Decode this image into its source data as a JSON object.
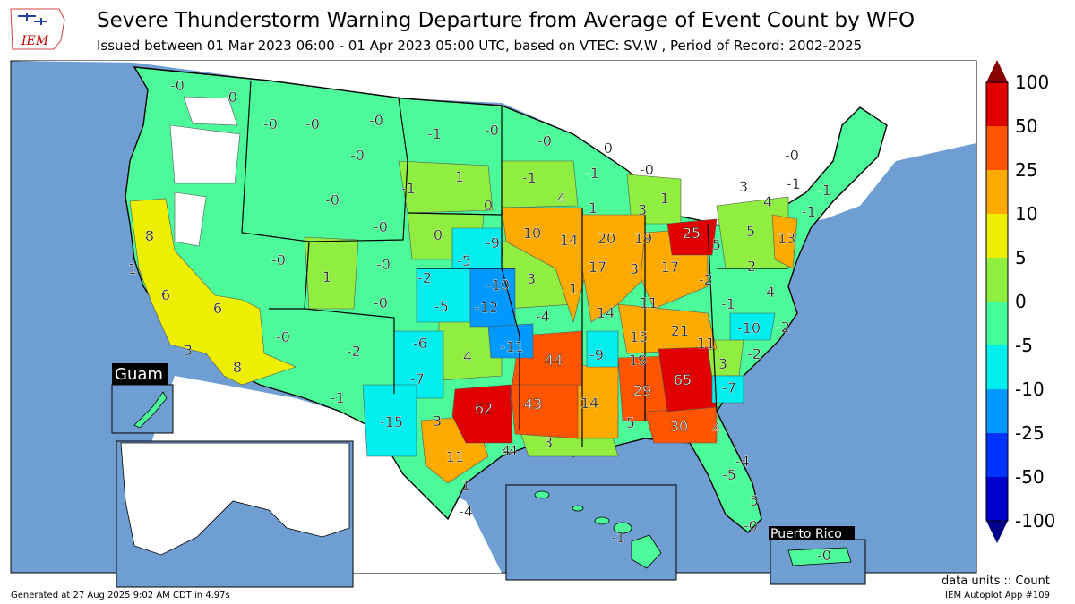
{
  "header": {
    "title": "Severe Thunderstorm Warning Departure from Average of Event Count by WFO",
    "subtitle": "Issued between 01 Mar 2023 06:00 - 01 Apr 2023 05:00 UTC, based on VTEC: SV.W  , Period of Record: 2002-2025",
    "logo_text": "IEM"
  },
  "colorbar": {
    "levels": [
      "100",
      "50",
      "25",
      "10",
      "5",
      "0",
      "-5",
      "-10",
      "-25",
      "-50",
      "-100"
    ],
    "colors": [
      "#8b0000",
      "#e00000",
      "#ff5500",
      "#ffaa00",
      "#eeee00",
      "#90ee40",
      "#44ff99",
      "#00eeee",
      "#0099ff",
      "#0033ff",
      "#0000cc",
      "#00008b"
    ]
  },
  "insets": {
    "guam": "Guam",
    "puerto_rico": "Puerto Rico"
  },
  "wfo_values": [
    "-0",
    "-0",
    "-0",
    "-0",
    "-0",
    "-0",
    "-0",
    "-0",
    "-0",
    "-0",
    "-0",
    "-0",
    "-0",
    "-0",
    "-0",
    "-0",
    "-0",
    "-0",
    "-0",
    "-1",
    "-1",
    "-1",
    "-1",
    "-1",
    "-1",
    "-1",
    "-1",
    "-1",
    "-1",
    "-2",
    "-2",
    "-2",
    "-2",
    "-2",
    "-4",
    "-4",
    "-4",
    "-4",
    "-5",
    "-5",
    "-5",
    "-6",
    "-7",
    "-7",
    "-9",
    "-9",
    "-10",
    "-10",
    "-11",
    "-12",
    "-15",
    "0",
    "0",
    "1",
    "1",
    "1",
    "1",
    "1",
    "1",
    "1",
    "2",
    "3",
    "3",
    "3",
    "3",
    "3",
    "3",
    "3",
    "3",
    "4",
    "4",
    "4",
    "4",
    "4",
    "4",
    "5",
    "5",
    "5",
    "5",
    "6",
    "6",
    "8",
    "8",
    "10",
    "11",
    "11",
    "11",
    "13",
    "14",
    "14",
    "14",
    "15",
    "17",
    "17",
    "19",
    "19",
    "20",
    "21",
    "25",
    "29",
    "30",
    "43",
    "44",
    "62",
    "65"
  ],
  "footer": {
    "generated": "Generated at 27 Aug 2025 9:02 AM CDT in 4.97s",
    "units": "data units :: Count",
    "app": "IEM Autoplot App #109"
  }
}
